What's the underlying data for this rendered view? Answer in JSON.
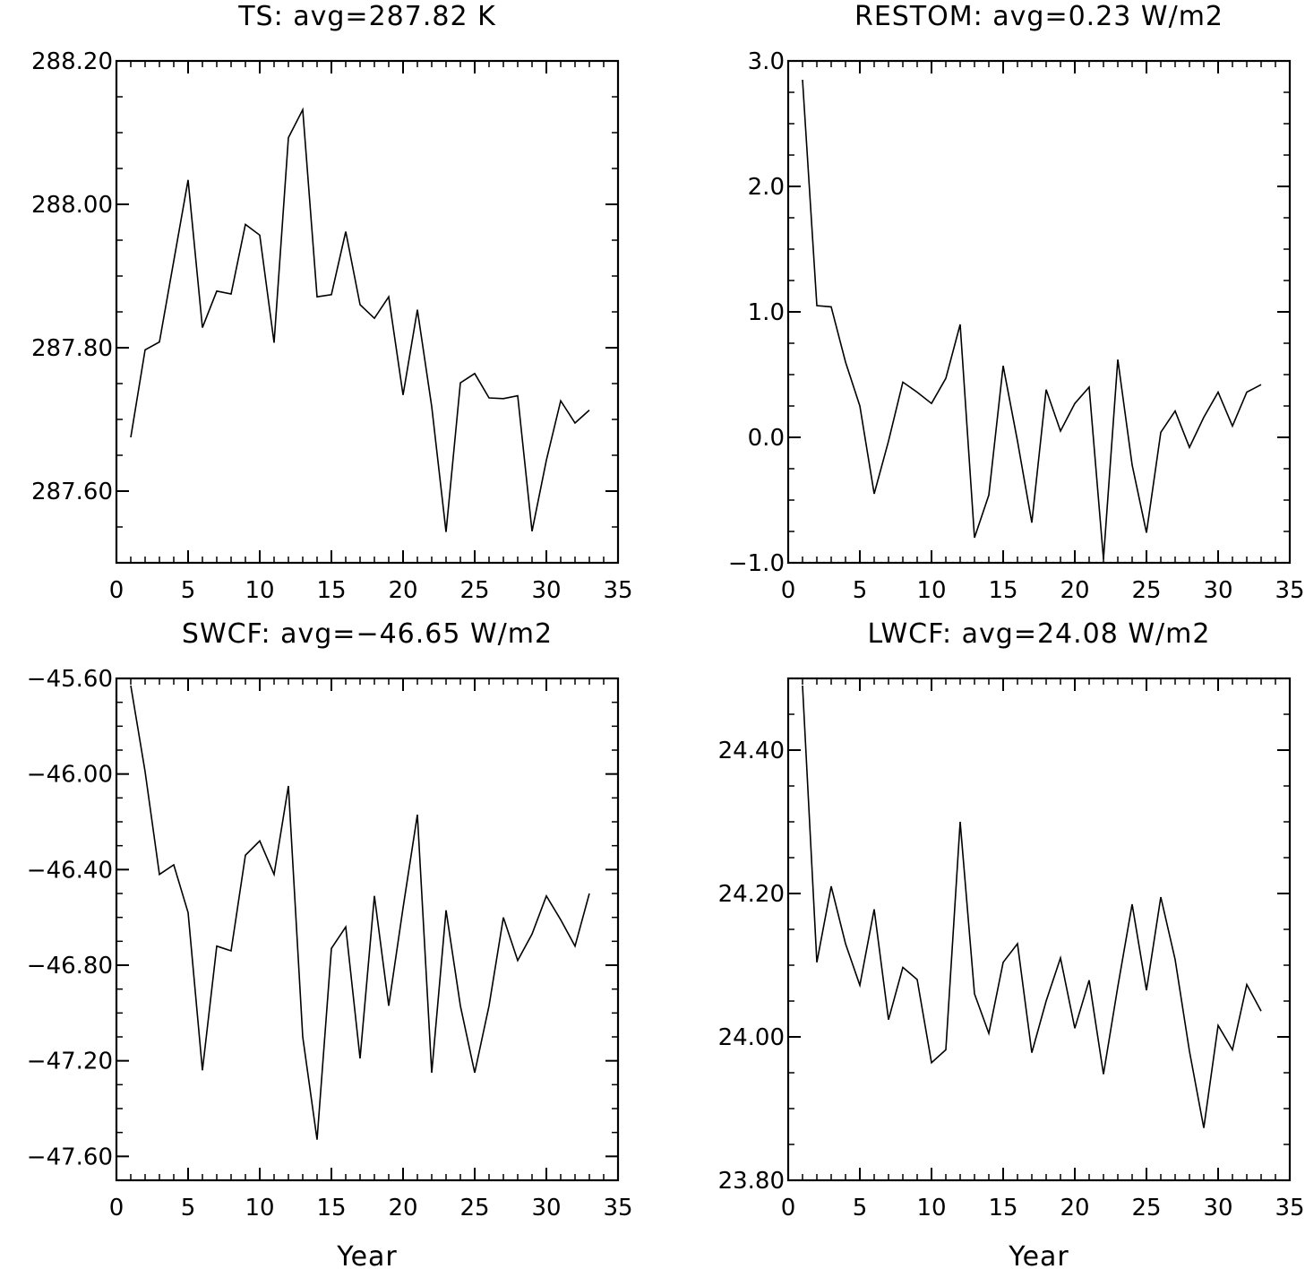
{
  "chart_data": [
    {
      "type": "line",
      "title": "TS: avg=287.82 K",
      "xlabel": "",
      "ylabel": "",
      "xlim": [
        0,
        35
      ],
      "ylim": [
        287.5,
        288.2
      ],
      "xticks": [
        0,
        5,
        10,
        15,
        20,
        25,
        30,
        35
      ],
      "yticks": [
        287.6,
        287.8,
        288.0,
        288.2
      ],
      "yticklabels": [
        "287.60",
        "287.80",
        "288.00",
        "288.20"
      ],
      "grid": false,
      "x": [
        1,
        2,
        3,
        4,
        5,
        6,
        7,
        8,
        9,
        10,
        11,
        12,
        13,
        14,
        15,
        16,
        17,
        18,
        19,
        20,
        21,
        22,
        23,
        24,
        25,
        26,
        27,
        28,
        29,
        30,
        31,
        32,
        33
      ],
      "series": [
        {
          "values": [
            287.675,
            287.797,
            287.808,
            287.921,
            288.034,
            287.828,
            287.879,
            287.875,
            287.972,
            287.957,
            287.807,
            288.093,
            288.132,
            287.871,
            287.874,
            287.962,
            287.86,
            287.841,
            287.871,
            287.734,
            287.853,
            287.718,
            287.543,
            287.751,
            287.764,
            287.73,
            287.729,
            287.733,
            287.544,
            287.643,
            287.726,
            287.695,
            287.713
          ]
        }
      ]
    },
    {
      "type": "line",
      "title": "RESTOM: avg=0.23 W/m2",
      "xlabel": "",
      "ylabel": "",
      "xlim": [
        0,
        35
      ],
      "ylim": [
        -1.0,
        3.0
      ],
      "xticks": [
        0,
        5,
        10,
        15,
        20,
        25,
        30,
        35
      ],
      "yticks": [
        -1.0,
        0.0,
        1.0,
        2.0,
        3.0
      ],
      "yticklabels": [
        "−1.0",
        "0.0",
        "1.0",
        "2.0",
        "3.0"
      ],
      "grid": false,
      "x": [
        1,
        2,
        3,
        4,
        5,
        6,
        7,
        8,
        9,
        10,
        11,
        12,
        13,
        14,
        15,
        16,
        17,
        18,
        19,
        20,
        21,
        22,
        23,
        24,
        25,
        26,
        27,
        28,
        29,
        30,
        31,
        32,
        33
      ],
      "series": [
        {
          "values": [
            2.85,
            1.05,
            1.04,
            0.6,
            0.25,
            -0.45,
            -0.03,
            0.44,
            0.36,
            0.27,
            0.47,
            0.9,
            -0.8,
            -0.46,
            0.57,
            -0.03,
            -0.68,
            0.38,
            0.05,
            0.27,
            0.4,
            -0.97,
            0.62,
            -0.22,
            -0.76,
            0.04,
            0.21,
            -0.08,
            0.16,
            0.36,
            0.09,
            0.36,
            0.42
          ]
        }
      ]
    },
    {
      "type": "line",
      "title": "SWCF: avg=−46.65 W/m2",
      "xlabel": "Year",
      "ylabel": "",
      "xlim": [
        0,
        35
      ],
      "ylim": [
        -47.7,
        -45.6
      ],
      "xticks": [
        0,
        5,
        10,
        15,
        20,
        25,
        30,
        35
      ],
      "yticks": [
        -47.6,
        -47.2,
        -46.8,
        -46.4,
        -46.0,
        -45.6
      ],
      "yticklabels": [
        "−47.60",
        "−47.20",
        "−46.80",
        "−46.40",
        "−46.00",
        "−45.60"
      ],
      "grid": false,
      "x": [
        1,
        2,
        3,
        4,
        5,
        6,
        7,
        8,
        9,
        10,
        11,
        12,
        13,
        14,
        15,
        16,
        17,
        18,
        19,
        20,
        21,
        22,
        23,
        24,
        25,
        26,
        27,
        28,
        29,
        30,
        31,
        32,
        33
      ],
      "series": [
        {
          "values": [
            -45.63,
            -45.99,
            -46.42,
            -46.38,
            -46.58,
            -47.24,
            -46.72,
            -46.74,
            -46.34,
            -46.28,
            -46.42,
            -46.05,
            -47.1,
            -47.53,
            -46.73,
            -46.64,
            -47.19,
            -46.51,
            -46.97,
            -46.56,
            -46.17,
            -47.25,
            -46.57,
            -46.97,
            -47.25,
            -46.97,
            -46.6,
            -46.78,
            -46.67,
            -46.51,
            -46.61,
            -46.72,
            -46.5
          ]
        }
      ]
    },
    {
      "type": "line",
      "title": "LWCF: avg=24.08 W/m2",
      "xlabel": "Year",
      "ylabel": "",
      "xlim": [
        0,
        35
      ],
      "ylim": [
        23.8,
        24.5
      ],
      "xticks": [
        0,
        5,
        10,
        15,
        20,
        25,
        30,
        35
      ],
      "yticks": [
        23.8,
        24.0,
        24.2,
        24.4
      ],
      "yticklabels": [
        "23.80",
        "24.00",
        "24.20",
        "24.40"
      ],
      "grid": false,
      "x": [
        1,
        2,
        3,
        4,
        5,
        6,
        7,
        8,
        9,
        10,
        11,
        12,
        13,
        14,
        15,
        16,
        17,
        18,
        19,
        20,
        21,
        22,
        23,
        24,
        25,
        26,
        27,
        28,
        29,
        30,
        31,
        32,
        33
      ],
      "series": [
        {
          "values": [
            24.49,
            24.104,
            24.21,
            24.13,
            24.072,
            24.178,
            24.024,
            24.097,
            24.08,
            23.964,
            23.982,
            24.3,
            24.06,
            24.005,
            24.104,
            24.13,
            23.978,
            24.05,
            24.11,
            24.012,
            24.079,
            23.948,
            24.07,
            24.185,
            24.065,
            24.195,
            24.108,
            23.98,
            23.873,
            24.016,
            23.982,
            24.073,
            24.036
          ]
        }
      ]
    }
  ]
}
